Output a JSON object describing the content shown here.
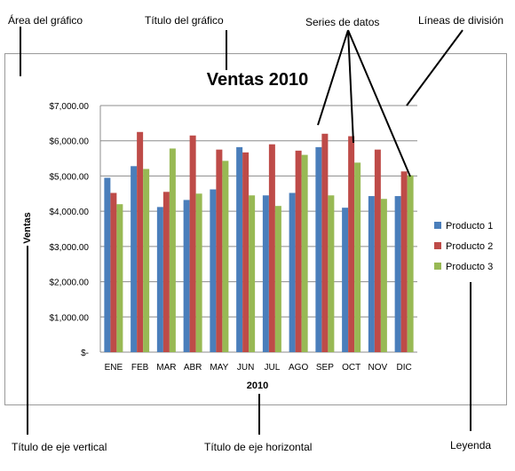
{
  "annotations": {
    "chart_area": "Área del gráfico",
    "chart_title": "Título del gráfico",
    "data_series": "Series de datos",
    "gridlines": "Líneas de división",
    "vertical_axis_title": "Título de eje vertical",
    "horizontal_axis_title": "Título de eje horizontal",
    "legend": "Leyenda"
  },
  "chart_data": {
    "type": "bar",
    "title": "Ventas 2010",
    "xlabel": "2010",
    "ylabel": "Ventas",
    "categories": [
      "ENE",
      "FEB",
      "MAR",
      "ABR",
      "MAY",
      "JUN",
      "JUL",
      "AGO",
      "SEP",
      "OCT",
      "NOV",
      "DIC"
    ],
    "yticks": [
      "$-",
      "$1,000.00",
      "$2,000.00",
      "$3,000.00",
      "$4,000.00",
      "$5,000.00",
      "$6,000.00",
      "$7,000.00"
    ],
    "ylim": [
      0,
      7000
    ],
    "grid": true,
    "legend_position": "right",
    "series": [
      {
        "name": "Producto 1",
        "color": "#4a7ebb",
        "values": [
          4950,
          5280,
          4120,
          4320,
          4620,
          5820,
          4450,
          4520,
          5820,
          4100,
          4430,
          4430
        ]
      },
      {
        "name": "Producto 2",
        "color": "#be4b48",
        "values": [
          4520,
          6250,
          4550,
          6150,
          5750,
          5670,
          5900,
          5720,
          6200,
          6130,
          5750,
          5130
        ]
      },
      {
        "name": "Producto 3",
        "color": "#98b954",
        "values": [
          4200,
          5200,
          5780,
          4500,
          5430,
          4450,
          4150,
          5600,
          4450,
          5380,
          4350,
          5020
        ]
      }
    ]
  }
}
